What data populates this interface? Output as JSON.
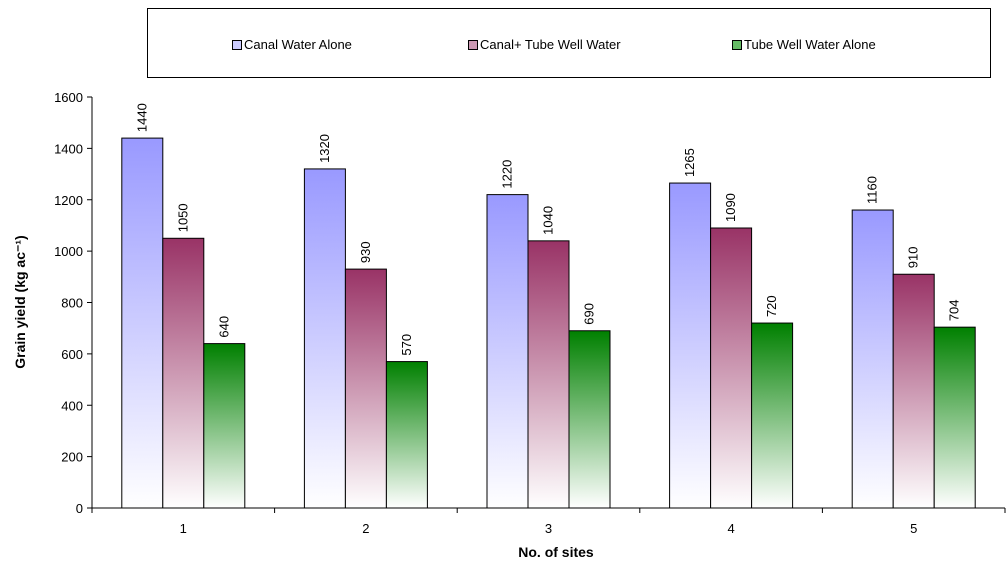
{
  "chart_data": {
    "type": "bar",
    "categories": [
      "1",
      "2",
      "3",
      "4",
      "5"
    ],
    "series": [
      {
        "name": "Canal Water Alone",
        "values": [
          1440,
          1320,
          1220,
          1265,
          1160
        ],
        "color_top": "#9999ff",
        "color_bottom": "#ffffff"
      },
      {
        "name": "Canal+ Tube Well Water",
        "values": [
          1050,
          930,
          1040,
          1090,
          910
        ],
        "color_top": "#993366",
        "color_bottom": "#ffffff"
      },
      {
        "name": "Tube Well Water Alone",
        "values": [
          640,
          570,
          690,
          720,
          704
        ],
        "color_top": "#008000",
        "color_bottom": "#ffffff"
      }
    ],
    "yticks": [
      0,
      200,
      400,
      600,
      800,
      1000,
      1200,
      1400,
      1600
    ],
    "ylim": [
      0,
      1600
    ],
    "xlabel": "No. of sites",
    "ylabel": "Grain yield (kg ac⁻¹)",
    "legend_position": "top",
    "grid": false
  }
}
